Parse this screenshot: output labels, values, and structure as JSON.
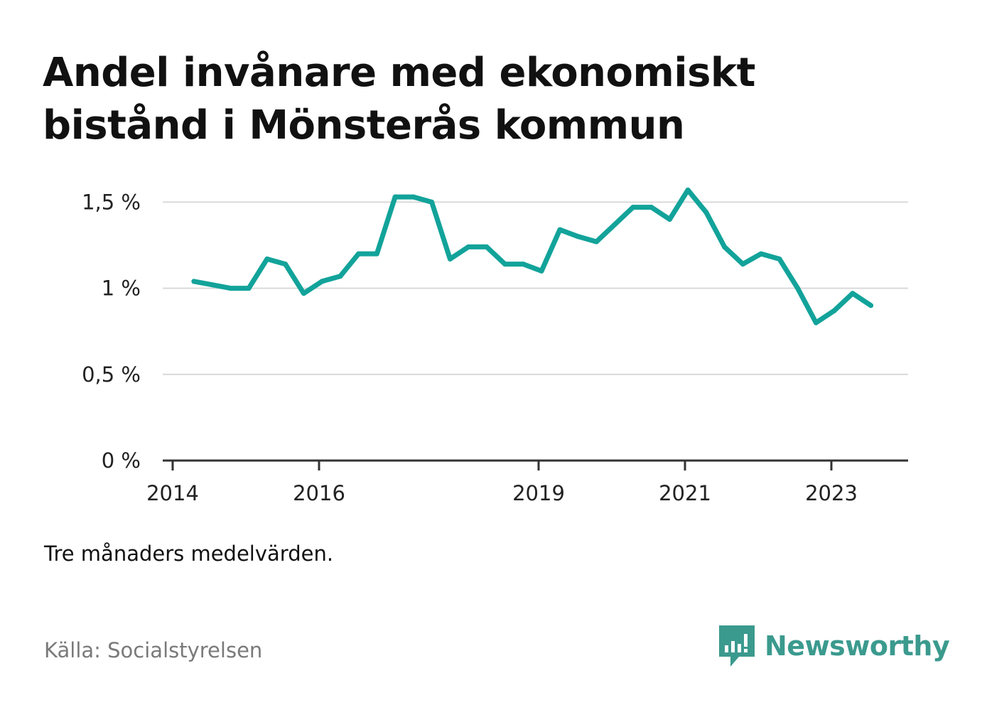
{
  "title": "Andel invånare med ekonomiskt bistånd i Mönsterås kommun",
  "note": "Tre månaders medelvärden.",
  "source": "Källa: Socialstyrelsen",
  "brand": {
    "name": "Newsworthy",
    "icon": "newsworthy-logo-icon",
    "color": "#3b9a8e"
  },
  "colors": {
    "line": "#12a39a",
    "grid": "#d9d9d9",
    "axis": "#333333"
  },
  "chart_data": {
    "type": "line",
    "title": "Andel invånare med ekonomiskt bistånd i Mönsterås kommun",
    "xlabel": "",
    "ylabel": "",
    "grid": true,
    "ylim": [
      0,
      1.65
    ],
    "y_ticks": [
      0,
      0.5,
      1,
      1.5
    ],
    "y_tick_labels": [
      "0 %",
      "0,5 %",
      "1 %",
      "1,5 %"
    ],
    "xlim": [
      2014.0,
      2024.0
    ],
    "x_ticks": [
      2014,
      2016,
      2019,
      2021,
      2023
    ],
    "x_tick_labels": [
      "2014",
      "2016",
      "2019",
      "2021",
      "2023"
    ],
    "series": [
      {
        "x": [
          2014.29,
          2014.54,
          2014.79,
          2015.04,
          2015.29,
          2015.54,
          2015.79,
          2016.04,
          2016.29,
          2016.54,
          2016.79,
          2017.04,
          2017.29,
          2017.54,
          2017.79,
          2018.04,
          2018.29,
          2018.54,
          2018.79,
          2019.04,
          2019.29,
          2019.54,
          2019.79,
          2020.04,
          2020.29,
          2020.54,
          2020.79,
          2021.04,
          2021.29,
          2021.54,
          2021.79,
          2022.04,
          2022.29,
          2022.54,
          2022.79,
          2023.04,
          2023.29,
          2023.54
        ],
        "values": [
          1.04,
          1.02,
          1.0,
          1.0,
          1.17,
          1.14,
          0.97,
          1.04,
          1.07,
          1.2,
          1.2,
          1.53,
          1.53,
          1.5,
          1.17,
          1.24,
          1.24,
          1.14,
          1.14,
          1.1,
          1.34,
          1.3,
          1.27,
          1.37,
          1.47,
          1.47,
          1.4,
          1.57,
          1.44,
          1.24,
          1.14,
          1.2,
          1.17,
          1.0,
          0.8,
          0.87,
          0.97,
          0.9
        ]
      }
    ]
  }
}
